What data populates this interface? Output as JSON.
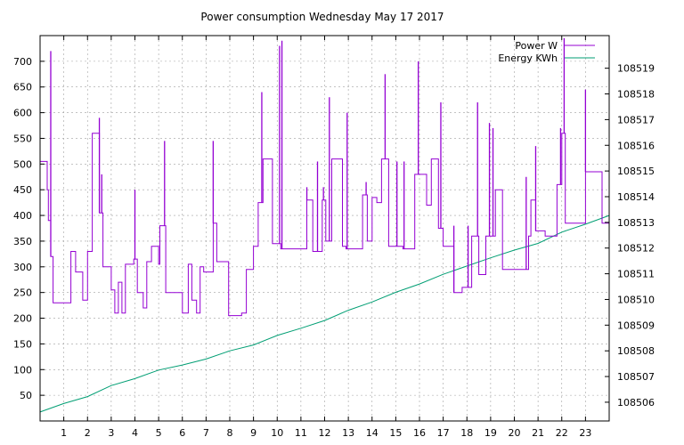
{
  "chart_data": {
    "type": "line",
    "title": "Power consumption Wednesday May 17 2017",
    "xlabel": "",
    "ylabel": "",
    "y2label": "",
    "grid": true,
    "legend_position": "top-right",
    "x_range": [
      0,
      24
    ],
    "x_ticks": [
      "1",
      "2",
      "3",
      "4",
      "5",
      "6",
      "7",
      "8",
      "9",
      "10",
      "11",
      "12",
      "13",
      "14",
      "15",
      "16",
      "17",
      "18",
      "19",
      "20",
      "21",
      "22",
      "23"
    ],
    "ylim": [
      0,
      750
    ],
    "y_ticks": [
      "50",
      "100",
      "150",
      "200",
      "250",
      "300",
      "350",
      "400",
      "450",
      "500",
      "550",
      "600",
      "650",
      "700"
    ],
    "y2lim": [
      108505.27,
      108520.27
    ],
    "y2_ticks": [
      "108506",
      "108507",
      "108508",
      "108509",
      "108510",
      "108511",
      "108512",
      "108513",
      "108514",
      "108515",
      "108516",
      "108517",
      "108518",
      "108519"
    ],
    "colors": {
      "power": "#9400d3",
      "energy": "#009e73"
    },
    "series": [
      {
        "name": "Power W",
        "axis": "left",
        "color": "#9400d3",
        "step": true,
        "x": [
          0.0,
          0.3,
          0.35,
          0.45,
          0.55,
          0.7,
          1.3,
          1.5,
          1.8,
          2.0,
          2.2,
          2.5,
          2.65,
          3.0,
          3.15,
          3.3,
          3.45,
          3.6,
          3.95,
          4.1,
          4.35,
          4.5,
          4.7,
          5.0,
          5.05,
          5.3,
          5.4,
          6.0,
          6.25,
          6.4,
          6.6,
          6.75,
          6.9,
          7.3,
          7.45,
          7.95,
          8.5,
          8.7,
          9.0,
          9.2,
          9.4,
          9.8,
          10.15,
          10.3,
          10.8,
          11.25,
          11.5,
          11.9,
          12.05,
          12.3,
          12.75,
          12.9,
          13.6,
          13.8,
          14.0,
          14.2,
          14.4,
          14.7,
          15.3,
          15.45,
          15.8,
          16.3,
          16.5,
          16.8,
          17.0,
          17.45,
          17.8,
          18.2,
          18.5,
          18.8,
          19.2,
          19.5,
          19.95,
          20.6,
          20.7,
          20.9,
          21.3,
          21.8,
          22.0,
          22.15,
          23.0,
          23.7,
          24.0
        ],
        "values": [
          505,
          450,
          390,
          320,
          230,
          230,
          330,
          290,
          235,
          330,
          560,
          405,
          300,
          255,
          210,
          270,
          210,
          305,
          315,
          250,
          220,
          310,
          340,
          305,
          380,
          250,
          250,
          210,
          305,
          235,
          210,
          300,
          290,
          385,
          310,
          205,
          210,
          295,
          340,
          425,
          510,
          345,
          335,
          335,
          335,
          430,
          330,
          430,
          350,
          510,
          340,
          335,
          440,
          350,
          435,
          425,
          510,
          340,
          335,
          335,
          480,
          420,
          510,
          375,
          340,
          250,
          260,
          360,
          285,
          360,
          450,
          295,
          295,
          360,
          430,
          370,
          360,
          460,
          560,
          385,
          485,
          385,
          485
        ]
      },
      {
        "name": "Energy KWh",
        "axis": "right",
        "color": "#009e73",
        "step": false,
        "x": [
          0,
          1,
          2,
          3,
          4,
          5,
          6,
          7,
          8,
          9,
          10,
          11,
          12,
          13,
          14,
          15,
          16,
          17,
          18,
          19,
          20,
          21,
          22,
          23,
          24
        ],
        "values": [
          108505.62,
          108505.95,
          108506.22,
          108506.65,
          108506.92,
          108507.25,
          108507.45,
          108507.68,
          108508.0,
          108508.23,
          108508.6,
          108508.88,
          108509.18,
          108509.58,
          108509.9,
          108510.28,
          108510.6,
          108510.98,
          108511.3,
          108511.62,
          108511.92,
          108512.18,
          108512.62,
          108512.93,
          108513.27
        ]
      }
    ],
    "spikes": {
      "x": [
        0.45,
        2.5,
        2.6,
        4.0,
        5.25,
        7.3,
        9.35,
        10.1,
        10.2,
        11.25,
        11.7,
        11.95,
        12.2,
        12.95,
        13.75,
        14.55,
        15.05,
        15.35,
        15.95,
        16.9,
        17.45,
        18.05,
        18.45,
        18.95,
        19.1,
        20.5,
        20.9,
        21.95,
        22.1,
        23.0
      ],
      "values": [
        720,
        590,
        480,
        450,
        545,
        545,
        640,
        730,
        740,
        455,
        505,
        455,
        630,
        600,
        465,
        675,
        505,
        505,
        700,
        620,
        380,
        380,
        620,
        580,
        570,
        475,
        535,
        570,
        745,
        645
      ]
    }
  }
}
